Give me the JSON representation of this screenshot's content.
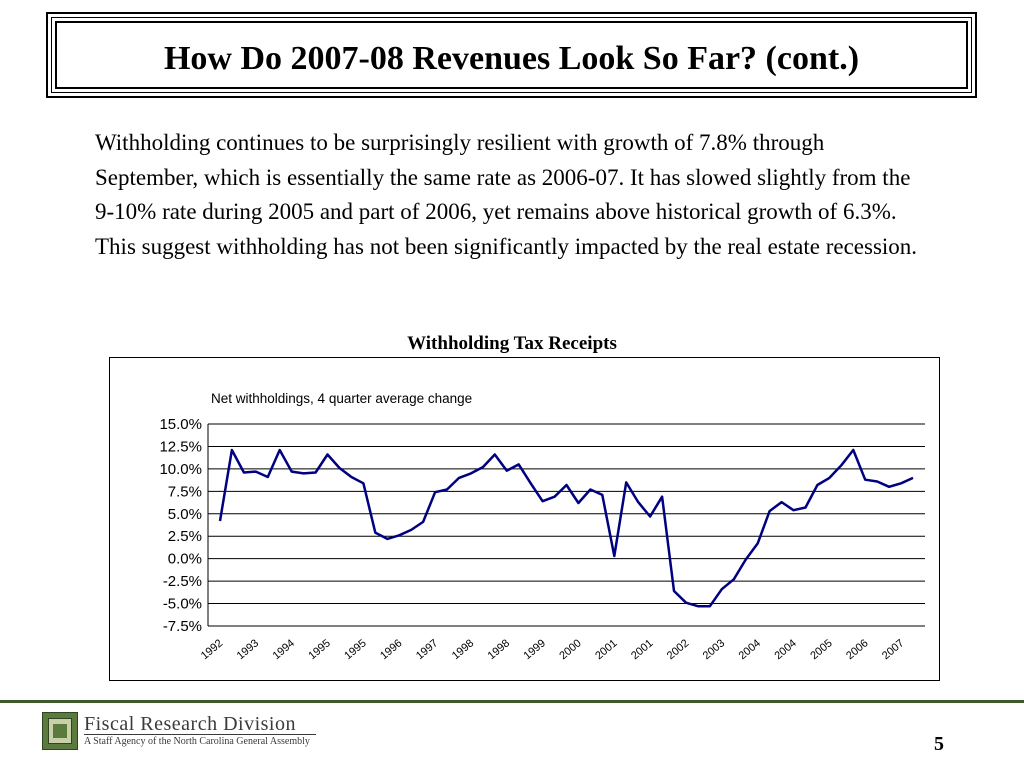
{
  "slide": {
    "title": "How Do 2007-08 Revenues Look So Far? (cont.)",
    "body": "Withholding continues to be surprisingly resilient with growth of 7.8% through September, which is essentially the same rate as 2006-07. It has slowed slightly from the 9-10% rate during 2005 and part of 2006, yet remains above historical growth of 6.3%. This suggest withholding has not been significantly impacted by the real estate recession.",
    "chart_caption": "Withholding Tax Receipts",
    "page_number": "5"
  },
  "footer": {
    "org_name": "Fiscal Research Division",
    "org_subtitle": "A Staff Agency of the North Carolina General Assembly",
    "accent_color": "#3e5a2c"
  },
  "chart_data": {
    "type": "line",
    "title": "Net withholdings, 4 quarter average change",
    "xlabel": "",
    "ylabel": "",
    "ylim": [
      -7.5,
      15.0
    ],
    "y_ticks": [
      "15.0%",
      "12.5%",
      "10.0%",
      "7.5%",
      "5.0%",
      "2.5%",
      "0.0%",
      "-2.5%",
      "-5.0%",
      "-7.5%"
    ],
    "x_tick_labels": [
      "1992",
      "1993",
      "1994",
      "1995",
      "1995",
      "1996",
      "1997",
      "1998",
      "1998",
      "1999",
      "2000",
      "2001",
      "2001",
      "2002",
      "2003",
      "2004",
      "2004",
      "2005",
      "2006",
      "2007"
    ],
    "grid": true,
    "line_color": "#000080",
    "series": [
      {
        "name": "",
        "values": [
          4.2,
          12.1,
          9.6,
          9.7,
          9.1,
          12.1,
          9.7,
          9.5,
          9.6,
          11.6,
          10.1,
          9.1,
          8.4,
          2.9,
          2.2,
          2.6,
          3.2,
          4.1,
          7.4,
          7.7,
          9.0,
          9.5,
          10.2,
          11.6,
          9.8,
          10.5,
          8.4,
          6.4,
          6.9,
          8.2,
          6.2,
          7.7,
          7.1,
          0.3,
          8.5,
          6.3,
          4.7,
          6.9,
          -3.6,
          -4.9,
          -5.3,
          -5.3,
          -3.4,
          -2.3,
          -0.1,
          1.7,
          5.3,
          6.3,
          5.4,
          5.7,
          8.2,
          9.0,
          10.4,
          12.1,
          8.8,
          8.6,
          8.0,
          8.4,
          9.0
        ]
      }
    ]
  }
}
